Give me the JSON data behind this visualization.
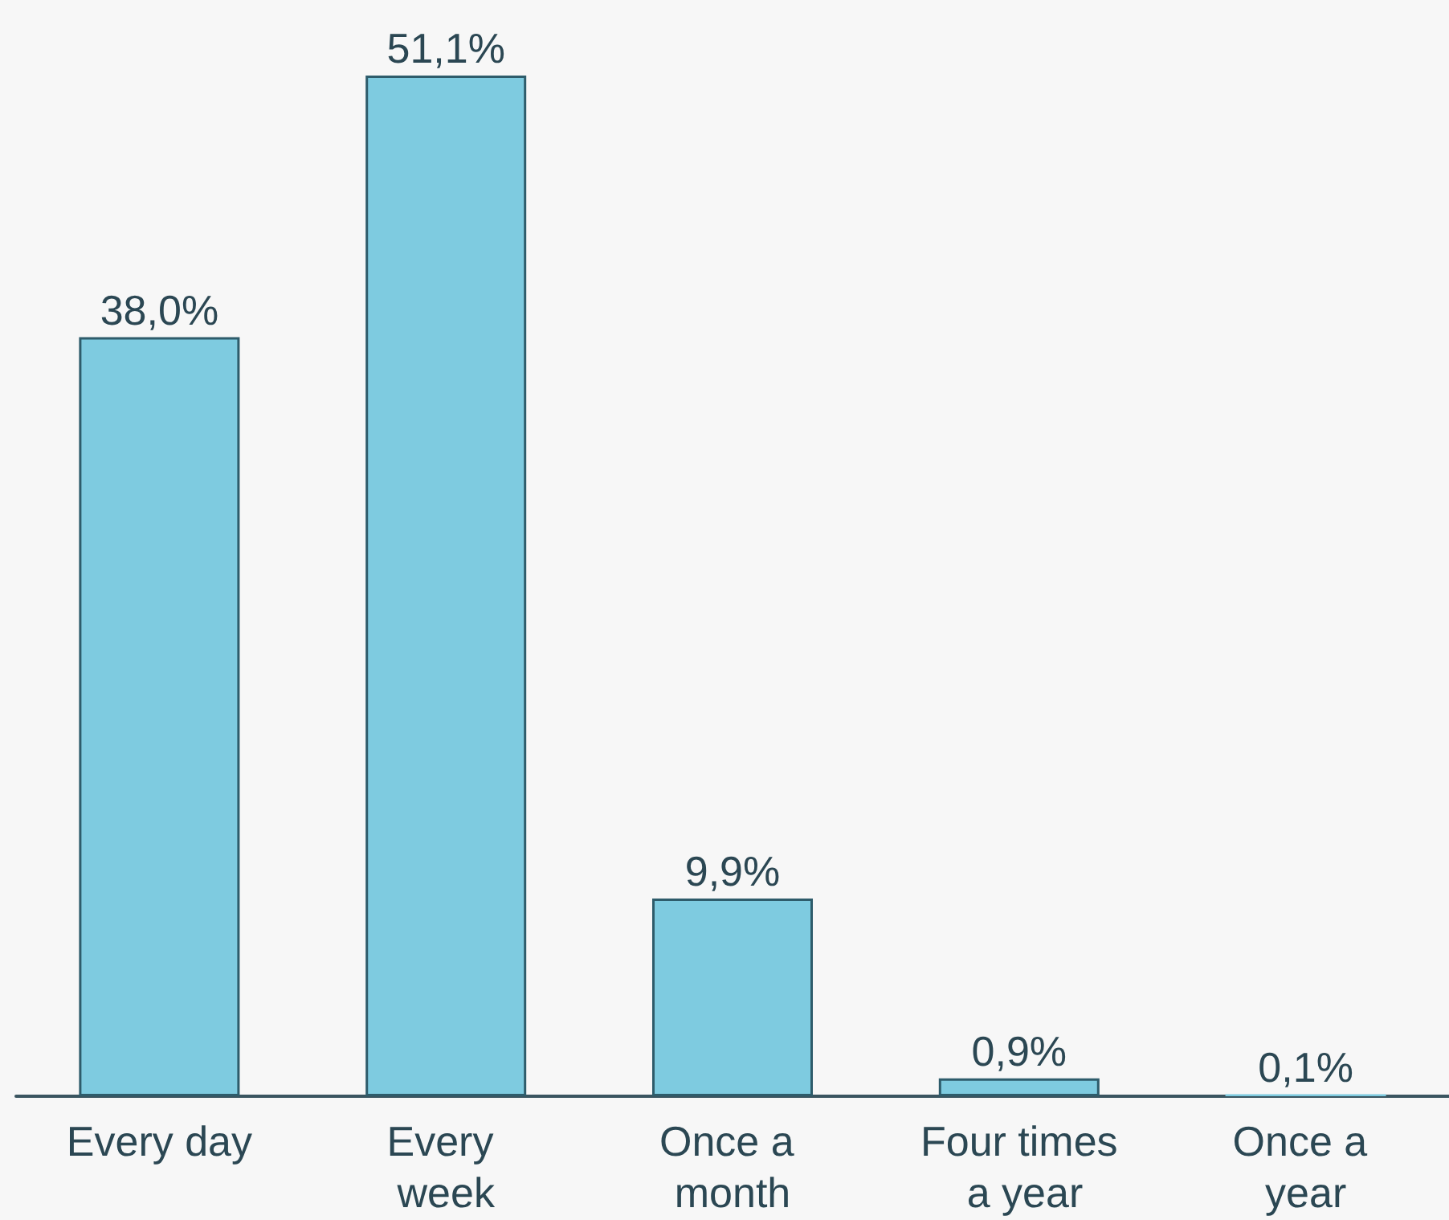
{
  "chart_data": {
    "type": "bar",
    "categories": [
      "Every day",
      "Every week",
      "Once a month",
      "Four times a year",
      "Once a year"
    ],
    "values": [
      38.0,
      51.1,
      9.9,
      0.9,
      0.1
    ],
    "value_labels": [
      "38,0%",
      "51,1%",
      "9,9%",
      "0,9%",
      "0,1%"
    ],
    "color": "#7ecbe0"
  }
}
